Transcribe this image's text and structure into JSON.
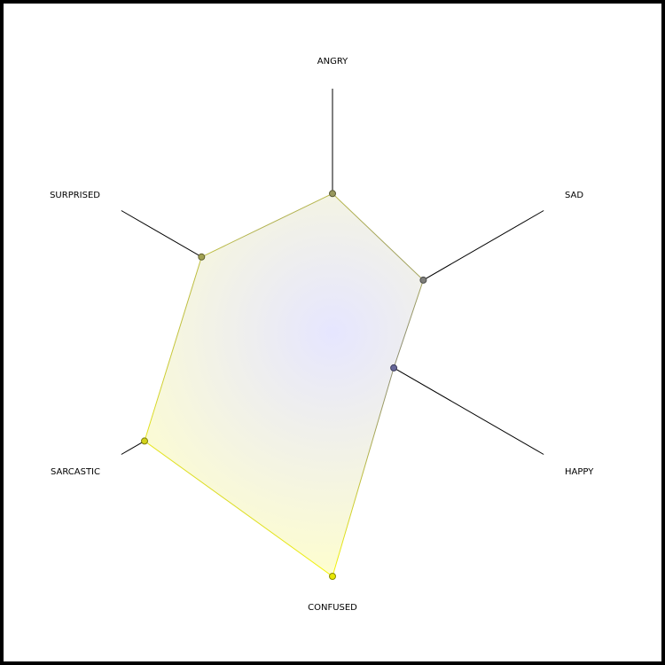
{
  "chart_data": {
    "type": "radar",
    "title": "",
    "categories": [
      "ANGRY",
      "SAD",
      "HAPPY",
      "CONFUSED",
      "SARCASTIC",
      "SURPRISED"
    ],
    "series": [
      {
        "values": [
          57,
          43,
          29,
          100,
          89,
          62
        ]
      }
    ],
    "range": [
      0,
      100
    ],
    "grid": false,
    "colors": {
      "center_fill": "#e6e6ff",
      "outer_fill": "#ffffcc",
      "point_low": "#666699",
      "point_high": "#e6e600",
      "axis": "#000000",
      "border": "#000000"
    }
  }
}
